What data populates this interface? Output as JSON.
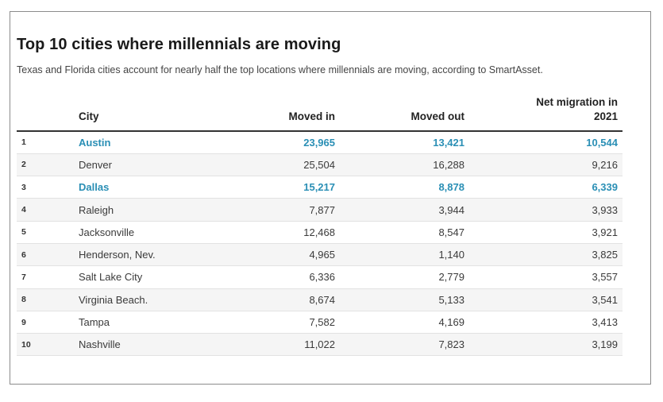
{
  "title": "Top 10 cities where millennials are moving",
  "subtitle": "Texas and Florida cities account for nearly half the top locations where millennials are moving, according to SmartAsset.",
  "columns": {
    "rank": "",
    "city": "City",
    "moved_in": "Moved in",
    "moved_out": "Moved out",
    "net_line1": "Net migration in",
    "net_line2": "2021"
  },
  "rows": [
    {
      "rank": "1",
      "city": "Austin",
      "moved_in": "23,965",
      "moved_out": "13,421",
      "net": "10,544",
      "highlight": true
    },
    {
      "rank": "2",
      "city": "Denver",
      "moved_in": "25,504",
      "moved_out": "16,288",
      "net": "9,216",
      "highlight": false
    },
    {
      "rank": "3",
      "city": "Dallas",
      "moved_in": "15,217",
      "moved_out": "8,878",
      "net": "6,339",
      "highlight": true
    },
    {
      "rank": "4",
      "city": "Raleigh",
      "moved_in": "7,877",
      "moved_out": "3,944",
      "net": "3,933",
      "highlight": false
    },
    {
      "rank": "5",
      "city": "Jacksonville",
      "moved_in": "12,468",
      "moved_out": "8,547",
      "net": "3,921",
      "highlight": false
    },
    {
      "rank": "6",
      "city": "Henderson, Nev.",
      "moved_in": "4,965",
      "moved_out": "1,140",
      "net": "3,825",
      "highlight": false
    },
    {
      "rank": "7",
      "city": "Salt Lake City",
      "moved_in": "6,336",
      "moved_out": "2,779",
      "net": "3,557",
      "highlight": false
    },
    {
      "rank": "8",
      "city": "Virginia Beach.",
      "moved_in": "8,674",
      "moved_out": "5,133",
      "net": "3,541",
      "highlight": false
    },
    {
      "rank": "9",
      "city": "Tampa",
      "moved_in": "7,582",
      "moved_out": "4,169",
      "net": "3,413",
      "highlight": false
    },
    {
      "rank": "10",
      "city": "Nashville",
      "moved_in": "11,022",
      "moved_out": "7,823",
      "net": "3,199",
      "highlight": false
    }
  ],
  "colors": {
    "highlight": "#2a8fb5",
    "border": "#8c8c8c",
    "stripe": "#f5f5f5"
  }
}
